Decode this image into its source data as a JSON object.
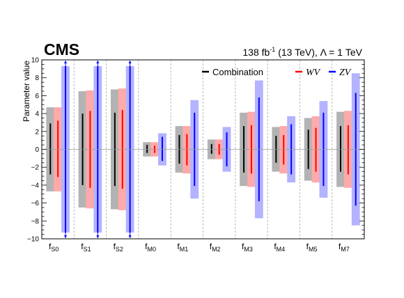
{
  "header": {
    "experiment": "CMS",
    "lumi_prefix": "138 fb",
    "lumi_exp": "-1",
    "lumi_suffix": " (13 TeV), Λ = 1 TeV"
  },
  "chart_data": {
    "type": "bar",
    "title": "",
    "xlabel": "",
    "ylabel": "Parameter value",
    "ylim": [
      -10,
      10
    ],
    "yticks": [
      -10,
      -8,
      -6,
      -4,
      -2,
      0,
      2,
      4,
      6,
      8,
      10
    ],
    "grid": false,
    "legend_position": "top-right",
    "categories": [
      {
        "main": "f",
        "sub": "S0"
      },
      {
        "main": "f",
        "sub": "S1"
      },
      {
        "main": "f",
        "sub": "S2"
      },
      {
        "main": "f",
        "sub": "M0"
      },
      {
        "main": "f",
        "sub": "M1"
      },
      {
        "main": "f",
        "sub": "M2"
      },
      {
        "main": "f",
        "sub": "M3"
      },
      {
        "main": "f",
        "sub": "M4"
      },
      {
        "main": "f",
        "sub": "M5"
      },
      {
        "main": "f",
        "sub": "M7"
      }
    ],
    "series": [
      {
        "name": "Combination",
        "line_color": "#000000",
        "band_color": "#b3b3b3",
        "interval_68": [
          [
            -2.8,
            2.9
          ],
          [
            -4.0,
            4.0
          ],
          [
            -4.1,
            4.1
          ],
          [
            -0.4,
            0.5
          ],
          [
            -1.6,
            1.6
          ],
          [
            -0.5,
            0.6
          ],
          [
            -2.6,
            2.6
          ],
          [
            -1.5,
            1.5
          ],
          [
            -2.2,
            2.2
          ],
          [
            -2.5,
            2.6
          ]
        ],
        "interval_95": [
          [
            -4.7,
            4.7
          ],
          [
            -6.5,
            6.5
          ],
          [
            -6.7,
            6.7
          ],
          [
            -0.8,
            0.8
          ],
          [
            -2.6,
            2.6
          ],
          [
            -1.1,
            1.1
          ],
          [
            -4.1,
            4.1
          ],
          [
            -2.5,
            2.5
          ],
          [
            -3.5,
            3.5
          ],
          [
            -4.2,
            4.2
          ]
        ]
      },
      {
        "name": "WV",
        "line_color": "#ff0000",
        "band_color": "#ffaaaa",
        "interval_68": [
          [
            -3.1,
            3.2
          ],
          [
            -4.3,
            4.3
          ],
          [
            -4.4,
            4.4
          ],
          [
            -0.4,
            0.4
          ],
          [
            -1.8,
            1.7
          ],
          [
            -0.6,
            0.6
          ],
          [
            -2.7,
            2.7
          ],
          [
            -1.7,
            1.6
          ],
          [
            -2.5,
            2.4
          ],
          [
            -2.8,
            2.7
          ]
        ],
        "interval_95": [
          [
            -4.7,
            4.7
          ],
          [
            -6.6,
            6.6
          ],
          [
            -6.8,
            6.8
          ],
          [
            -0.8,
            0.8
          ],
          [
            -2.7,
            2.6
          ],
          [
            -1.1,
            1.1
          ],
          [
            -4.2,
            4.2
          ],
          [
            -2.7,
            2.6
          ],
          [
            -3.7,
            3.7
          ],
          [
            -4.3,
            4.3
          ]
        ]
      },
      {
        "name": "ZV",
        "line_color": "#0000ff",
        "band_color": "#b3b3ff",
        "interval_68": [
          [
            -9.3,
            9.3
          ],
          [
            -9.3,
            9.3
          ],
          [
            -9.3,
            9.3
          ],
          [
            -1.3,
            1.4
          ],
          [
            -4.1,
            4.1
          ],
          [
            -1.9,
            1.9
          ],
          [
            -5.8,
            5.8
          ],
          [
            -2.8,
            2.8
          ],
          [
            -4.1,
            4.1
          ],
          [
            -6.3,
            6.3
          ]
        ],
        "interval_95": [
          [
            -9.3,
            9.3
          ],
          [
            -9.3,
            9.3
          ],
          [
            -9.3,
            9.3
          ],
          [
            -1.8,
            1.8
          ],
          [
            -5.5,
            5.5
          ],
          [
            -2.5,
            2.5
          ],
          [
            -7.7,
            7.7
          ],
          [
            -3.7,
            3.7
          ],
          [
            -5.4,
            5.4
          ],
          [
            -8.5,
            8.5
          ]
        ],
        "beyond_range": [
          true,
          true,
          true,
          false,
          false,
          false,
          false,
          false,
          false,
          false
        ]
      }
    ],
    "reference_line": 0
  }
}
